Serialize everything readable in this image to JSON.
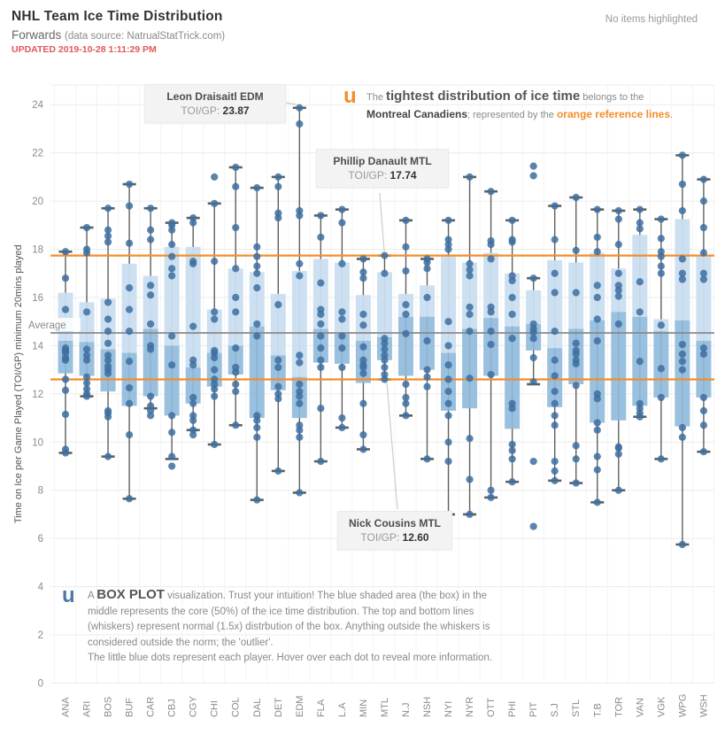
{
  "header": {
    "title": "NHL Team Ice Time Distribution",
    "subtitle": "Forwards",
    "source_note": "(data source: NatrualStatTrick.com)",
    "updated": "UPDATED 2019-10-28 1:11:29 PM",
    "highlight_status": "No items highlighted"
  },
  "annotations": {
    "draisaitl": {
      "name": "Leon Draisaitl EDM",
      "stat_label": "TOI/GP:",
      "stat_value": "23.87"
    },
    "danault": {
      "name": "Phillip Danault MTL",
      "stat_label": "TOI/GP:",
      "stat_value": "17.74"
    },
    "cousins": {
      "name": "Nick Cousins MTL",
      "stat_label": "TOI/GP:",
      "stat_value": "12.60"
    },
    "tightest_note": {
      "icon": "u",
      "pre": "The ",
      "emph": "tightest distribution of ice time",
      "post": " belongs to the",
      "team": "Montreal Canadiens",
      "sep": "; represented by the ",
      "orange": "orange reference lines",
      "end": "."
    },
    "boxplot_note": {
      "icon": "u",
      "line1_pre": "A ",
      "line1_emph": "BOX PLOT",
      "line1_rest": " visualization.  Trust your intuition!  The blue shaded area (the box) in the",
      "line2": "middle represents the core (50%) of the ice time distribution.  The top and bottom lines",
      "line3": "(whiskers) represent normal (1.5x) distrbution of the box.  Anything outside the whiskers is",
      "line4": "considered  outside the norm; the 'outlier'.",
      "line5": "The little blue dots represent each player.  Hover over each dot to reveal more information."
    }
  },
  "chart_data": {
    "type": "boxplot",
    "ylabel": "Time on Ice per Game Played (TOI/GP) minimum 20mins played",
    "ylim": [
      0,
      24
    ],
    "yticks": [
      0,
      2,
      4,
      6,
      8,
      10,
      12,
      14,
      16,
      18,
      20,
      22,
      24
    ],
    "grid": "horizontal-light",
    "colors": {
      "box_light": "#c9def0",
      "box_dark": "#8fb9db",
      "dot": "#3d6fa0",
      "whisker": "#5f5f5f",
      "reference_orange": "#f28e2b",
      "reference_gray": "#8a8a8a"
    },
    "reference_lines": [
      {
        "label": "",
        "value": 17.74,
        "color": "#f28e2b"
      },
      {
        "label": "",
        "value": 12.6,
        "color": "#f28e2b"
      },
      {
        "label": "Average",
        "value": 14.53,
        "color": "#8a8a8a"
      }
    ],
    "teams": [
      {
        "team": "ANA",
        "lo": 9.55,
        "q1": 12.85,
        "med": 14.2,
        "q3": 16.2,
        "hi": 17.9,
        "dots": [
          17.9,
          16.8,
          15.5,
          13.9,
          13.8,
          13.7,
          13.5,
          13.4,
          12.6,
          12.15,
          11.15,
          9.7,
          9.55
        ]
      },
      {
        "team": "ARI",
        "lo": 11.9,
        "q1": 12.75,
        "med": 14.15,
        "q3": 15.8,
        "hi": 18.9,
        "dots": [
          18.9,
          18.0,
          17.85,
          15.4,
          13.85,
          13.6,
          13.4,
          12.7,
          12.45,
          12.2,
          12.0,
          11.9
        ]
      },
      {
        "team": "BOS",
        "lo": 9.4,
        "q1": 12.1,
        "med": 13.85,
        "q3": 15.95,
        "hi": 19.7,
        "dots": [
          19.7,
          18.8,
          18.55,
          18.3,
          15.8,
          15.1,
          14.6,
          14.1,
          13.6,
          13.4,
          13.15,
          13.0,
          12.85,
          11.3,
          11.2,
          11.05,
          9.4
        ]
      },
      {
        "team": "BUF",
        "lo": 7.65,
        "q1": 11.5,
        "med": 13.7,
        "q3": 17.4,
        "hi": 20.7,
        "dots": [
          20.7,
          19.8,
          18.25,
          16.4,
          15.5,
          14.6,
          13.35,
          12.25,
          11.6,
          10.3,
          7.65
        ]
      },
      {
        "team": "CAR",
        "lo": 11.4,
        "q1": 11.9,
        "med": 14.7,
        "q3": 16.9,
        "hi": 19.7,
        "dots": [
          19.7,
          18.8,
          18.4,
          16.5,
          16.1,
          14.9,
          14.0,
          13.85,
          11.9,
          11.5,
          11.3,
          11.1
        ]
      },
      {
        "team": "CBJ",
        "lo": 9.3,
        "q1": 11.1,
        "med": 14.0,
        "q3": 18.1,
        "hi": 19.1,
        "dots": [
          19.1,
          19.0,
          18.8,
          18.2,
          17.7,
          17.2,
          16.9,
          14.4,
          13.2,
          11.1,
          10.4,
          9.4,
          9.0
        ]
      },
      {
        "team": "CGY",
        "lo": 10.5,
        "q1": 11.6,
        "med": 13.1,
        "q3": 18.1,
        "hi": 19.3,
        "dots": [
          19.3,
          19.1,
          17.5,
          17.4,
          14.8,
          13.4,
          13.2,
          11.85,
          11.6,
          11.1,
          10.9,
          10.5,
          10.3
        ]
      },
      {
        "team": "CHI",
        "lo": 9.9,
        "q1": 12.3,
        "med": 13.7,
        "q3": 15.5,
        "hi": 19.9,
        "dots": [
          21.0,
          19.9,
          17.5,
          15.4,
          15.1,
          13.8,
          13.7,
          13.5,
          13.0,
          12.6,
          12.4,
          12.2,
          11.9,
          9.9
        ]
      },
      {
        "team": "COL",
        "lo": 10.7,
        "q1": 12.8,
        "med": 14.0,
        "q3": 17.2,
        "hi": 21.4,
        "dots": [
          21.4,
          20.6,
          18.9,
          17.2,
          16.0,
          15.4,
          13.9,
          13.1,
          12.9,
          12.4,
          12.1,
          10.7
        ]
      },
      {
        "team": "DAL",
        "lo": 7.6,
        "q1": 11.0,
        "med": 14.8,
        "q3": 17.05,
        "hi": 20.55,
        "dots": [
          20.55,
          18.1,
          17.7,
          17.3,
          17.0,
          16.4,
          14.9,
          14.4,
          11.1,
          10.9,
          10.6,
          10.2,
          7.6
        ]
      },
      {
        "team": "DET",
        "lo": 8.8,
        "q1": 12.15,
        "med": 13.6,
        "q3": 16.15,
        "hi": 21.0,
        "dots": [
          21.0,
          20.6,
          19.5,
          19.3,
          15.7,
          13.4,
          13.1,
          12.3,
          12.0,
          11.8,
          8.8
        ]
      },
      {
        "team": "EDM",
        "lo": 7.9,
        "q1": 11.0,
        "med": 12.7,
        "q3": 17.1,
        "hi": 23.87,
        "dots": [
          23.87,
          23.2,
          19.6,
          19.4,
          17.4,
          16.9,
          13.6,
          13.3,
          12.4,
          12.1,
          11.9,
          11.6,
          10.7,
          10.5,
          10.2,
          7.9
        ]
      },
      {
        "team": "FLA",
        "lo": 9.2,
        "q1": 13.3,
        "med": 14.7,
        "q3": 17.6,
        "hi": 19.4,
        "dots": [
          19.4,
          18.5,
          16.6,
          15.5,
          15.3,
          14.9,
          14.4,
          13.9,
          13.4,
          13.1,
          11.4,
          9.2
        ]
      },
      {
        "team": "L.A",
        "lo": 10.6,
        "q1": 13.25,
        "med": 14.5,
        "q3": 17.45,
        "hi": 19.65,
        "dots": [
          19.65,
          19.1,
          17.4,
          15.4,
          15.1,
          14.4,
          13.9,
          13.1,
          11.0,
          10.6
        ]
      },
      {
        "team": "MIN",
        "lo": 9.7,
        "q1": 12.45,
        "med": 14.2,
        "q3": 16.1,
        "hi": 17.6,
        "dots": [
          17.6,
          17.05,
          16.8,
          15.3,
          14.85,
          13.95,
          13.4,
          13.2,
          13.1,
          12.85,
          11.6,
          10.3,
          9.7
        ]
      },
      {
        "team": "MTL",
        "lo": 12.6,
        "q1": 13.4,
        "med": 14.35,
        "q3": 17.05,
        "hi": 17.74,
        "dots": [
          17.74,
          17.0,
          14.3,
          14.1,
          13.85,
          13.6,
          13.4,
          13.1,
          12.8,
          12.6
        ]
      },
      {
        "team": "N.J",
        "lo": 11.1,
        "q1": 12.75,
        "med": 15.2,
        "q3": 16.15,
        "hi": 19.2,
        "dots": [
          19.2,
          18.1,
          17.1,
          15.7,
          15.3,
          14.5,
          12.4,
          11.85,
          11.6,
          11.1
        ]
      },
      {
        "team": "NSH",
        "lo": 9.3,
        "q1": 13.0,
        "med": 15.2,
        "q3": 16.5,
        "hi": 17.6,
        "dots": [
          17.6,
          17.45,
          17.2,
          16.0,
          14.2,
          13.0,
          12.7,
          12.3,
          9.3
        ]
      },
      {
        "team": "NYI",
        "lo": 7.0,
        "q1": 11.3,
        "med": 13.7,
        "q3": 17.7,
        "hi": 19.2,
        "dots": [
          19.2,
          18.4,
          18.2,
          18.0,
          15.0,
          14.0,
          13.2,
          12.6,
          12.1,
          11.6,
          11.1,
          10.0,
          9.2,
          7.0
        ]
      },
      {
        "team": "NYR",
        "lo": 7.0,
        "q1": 11.4,
        "med": 14.7,
        "q3": 17.45,
        "hi": 21.0,
        "dots": [
          21.0,
          17.4,
          17.15,
          16.9,
          15.6,
          15.3,
          14.6,
          12.65,
          10.15,
          8.45,
          7.0
        ]
      },
      {
        "team": "OTT",
        "lo": 7.7,
        "q1": 12.75,
        "med": 15.15,
        "q3": 17.85,
        "hi": 20.4,
        "dots": [
          20.4,
          18.35,
          18.2,
          17.6,
          15.6,
          15.4,
          14.6,
          14.05,
          12.8,
          8.0,
          7.7
        ]
      },
      {
        "team": "PHI",
        "lo": 8.35,
        "q1": 10.55,
        "med": 14.8,
        "q3": 17.0,
        "hi": 19.2,
        "dots": [
          19.2,
          18.4,
          18.3,
          16.9,
          16.7,
          16.0,
          15.3,
          14.3,
          11.6,
          11.4,
          9.9,
          9.65,
          9.3,
          8.35
        ]
      },
      {
        "team": "PIT",
        "lo": 12.4,
        "q1": 13.8,
        "med": 14.9,
        "q3": 16.3,
        "hi": 16.8,
        "dots": [
          21.45,
          21.05,
          16.8,
          14.9,
          14.7,
          14.55,
          14.3,
          13.5,
          12.5,
          9.2,
          6.5
        ]
      },
      {
        "team": "S.J",
        "lo": 8.4,
        "q1": 11.45,
        "med": 13.9,
        "q3": 17.55,
        "hi": 19.8,
        "dots": [
          19.8,
          18.4,
          17.0,
          16.2,
          14.6,
          13.4,
          12.75,
          12.1,
          11.6,
          11.1,
          10.7,
          9.2,
          8.8,
          8.4
        ]
      },
      {
        "team": "STL",
        "lo": 8.3,
        "q1": 12.4,
        "med": 14.7,
        "q3": 17.45,
        "hi": 20.15,
        "dots": [
          20.15,
          17.95,
          16.2,
          14.1,
          13.8,
          13.65,
          13.4,
          13.25,
          12.35,
          9.85,
          9.3,
          8.3
        ]
      },
      {
        "team": "T.B",
        "lo": 7.5,
        "q1": 10.8,
        "med": 15.05,
        "q3": 17.85,
        "hi": 19.65,
        "dots": [
          19.65,
          18.5,
          17.9,
          16.5,
          16.0,
          15.1,
          14.2,
          12.0,
          11.8,
          10.8,
          10.5,
          9.4,
          8.85,
          7.5
        ]
      },
      {
        "team": "TOR",
        "lo": 8.0,
        "q1": 10.9,
        "med": 15.4,
        "q3": 17.2,
        "hi": 19.6,
        "dots": [
          19.6,
          19.25,
          18.2,
          17.0,
          16.5,
          16.3,
          16.05,
          14.9,
          9.8,
          9.75,
          9.5,
          8.0
        ]
      },
      {
        "team": "VAN",
        "lo": 11.05,
        "q1": 11.5,
        "med": 15.2,
        "q3": 18.6,
        "hi": 19.65,
        "dots": [
          19.65,
          19.1,
          18.85,
          16.65,
          15.4,
          13.35,
          11.6,
          11.4,
          11.2,
          11.05
        ]
      },
      {
        "team": "VGK",
        "lo": 9.3,
        "q1": 11.85,
        "med": 14.6,
        "q3": 15.1,
        "hi": 19.25,
        "dots": [
          19.25,
          18.45,
          17.9,
          17.7,
          17.3,
          17.0,
          14.85,
          13.05,
          11.85,
          9.3
        ]
      },
      {
        "team": "WPG",
        "lo": 5.75,
        "q1": 10.65,
        "med": 15.05,
        "q3": 19.25,
        "hi": 21.9,
        "dots": [
          21.9,
          20.7,
          19.6,
          17.6,
          17.0,
          16.75,
          14.05,
          13.65,
          13.35,
          13.0,
          10.6,
          10.2,
          5.75
        ]
      },
      {
        "team": "WSH",
        "lo": 9.6,
        "q1": 11.85,
        "med": 14.2,
        "q3": 17.7,
        "hi": 20.9,
        "dots": [
          20.9,
          20.0,
          18.9,
          17.85,
          17.0,
          16.75,
          13.9,
          13.65,
          11.85,
          11.3,
          10.7,
          9.6
        ]
      }
    ]
  }
}
